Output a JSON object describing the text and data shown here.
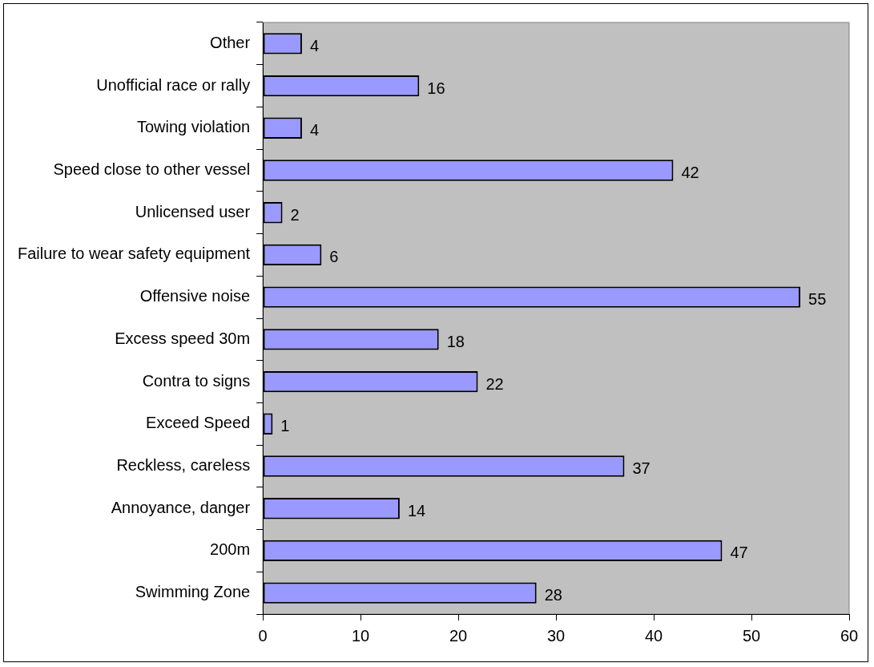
{
  "chart_data": {
    "type": "bar",
    "orientation": "horizontal",
    "categories": [
      "Other",
      "Unofficial race or rally",
      "Towing violation",
      "Speed close to other vessel",
      "Unlicensed user",
      "Failure to wear safety equipment",
      "Offensive noise",
      "Excess speed 30m",
      "Contra to signs",
      "Exceed Speed",
      "Reckless, careless",
      "Annoyance, danger",
      "200m",
      "Swimming Zone"
    ],
    "values": [
      4,
      16,
      4,
      42,
      2,
      6,
      55,
      18,
      22,
      1,
      37,
      14,
      47,
      28
    ],
    "color": "#9999ff",
    "xlim": [
      0,
      60
    ],
    "xticks": [
      0,
      10,
      20,
      30,
      40,
      50,
      60
    ],
    "data_labels": true,
    "grid": false,
    "legend": false
  }
}
